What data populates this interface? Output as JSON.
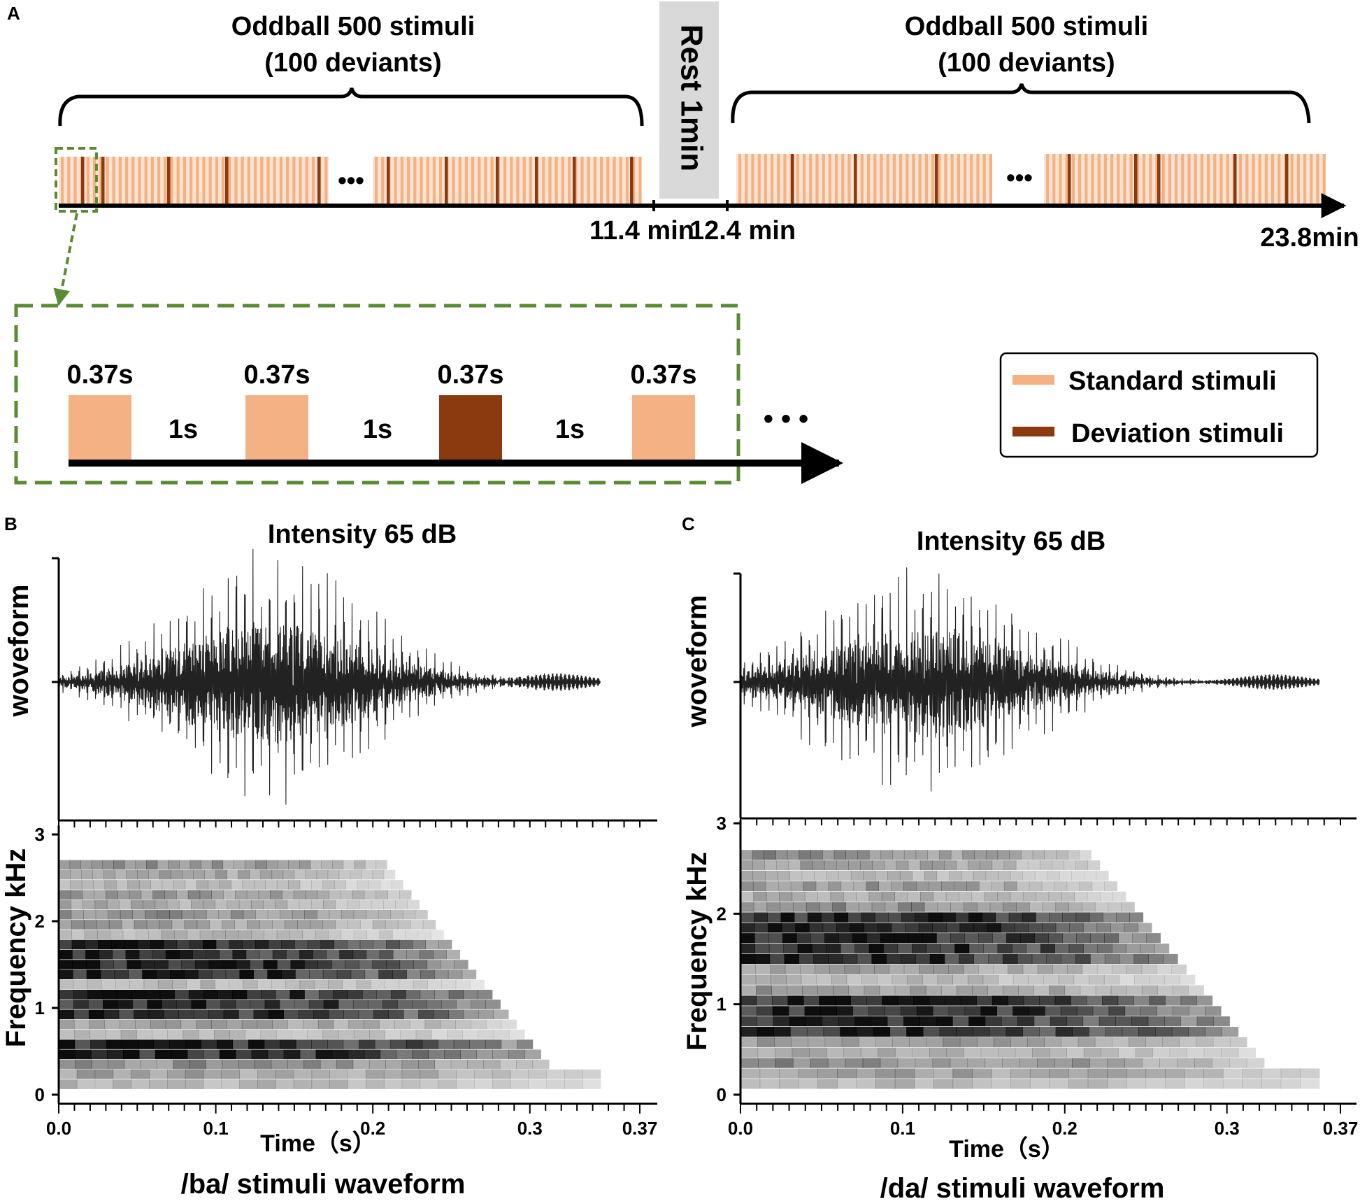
{
  "colors": {
    "standard": "#F4B183",
    "deviant": "#8B3A0F",
    "dashed_box": "#5A8A32",
    "rest_band": "#D9D9D9",
    "axis": "#000000"
  },
  "panel_a": {
    "label": "A",
    "block1": {
      "title_line1": "Oddball 500 stimuli",
      "title_line2": "(100 deviants)"
    },
    "block2": {
      "title_line1": "Oddball 500 stimuli",
      "title_line2": "(100 deviants)"
    },
    "rest_label": "Rest 1min",
    "ellipsis": "•••",
    "time_labels": {
      "block1_end": "11.4 min",
      "rest_end": "12.4 min",
      "total": "23.8min"
    },
    "inset": {
      "stim_durations": [
        "0.37s",
        "0.37s",
        "0.37s",
        "0.37s"
      ],
      "stim_types": [
        "standard",
        "standard",
        "deviant",
        "standard"
      ],
      "isi_labels": [
        "1s",
        "1s",
        "1s"
      ],
      "ellipsis": "• • •"
    },
    "legend": {
      "standard_label": "Standard stimuli",
      "deviant_label": "Deviation stimuli"
    }
  },
  "panel_b": {
    "label": "B",
    "title": "Intensity 65 dB",
    "waveform_ylabel": "woveform",
    "spectrogram_ylabel": "Frequency  kHz",
    "y_ticks": [
      "0",
      "1",
      "2",
      "3"
    ],
    "x_ticks": [
      "0.0",
      "0.1",
      "0.2",
      "0.3",
      "0.37"
    ],
    "xlabel": "Time（s）",
    "caption": "/ba/ stimuli waveform"
  },
  "panel_c": {
    "label": "C",
    "title": "Intensity 65 dB",
    "waveform_ylabel": "woveform",
    "spectrogram_ylabel": "Frequency  kHz",
    "y_ticks": [
      "0",
      "1",
      "2",
      "3"
    ],
    "x_ticks": [
      "0.0",
      "0.1",
      "0.2",
      "0.3",
      "0.37"
    ],
    "xlabel": "Time（s）",
    "caption": "/da/ stimuli waveform"
  }
}
